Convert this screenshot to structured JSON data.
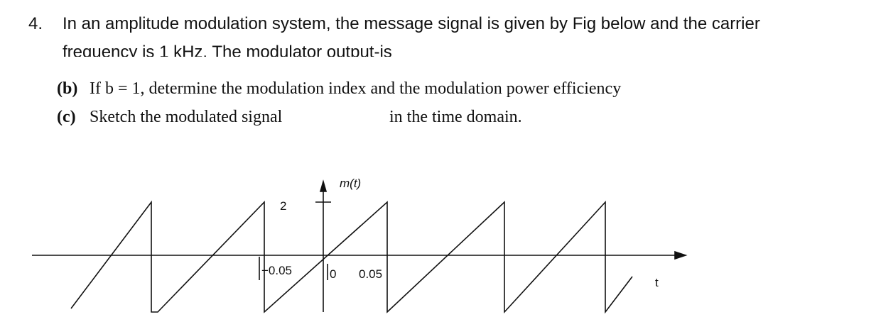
{
  "question": {
    "number": "4.",
    "text_lines": [
      "In an amplitude modulation system, the message signal is given by Fig below and the carrier",
      "frequency is 1 kHz. The modulator output-is"
    ]
  },
  "parts": [
    {
      "label": "(b)",
      "text": "If b = 1, determine the modulation index and the modulation power efficiency"
    },
    {
      "label": "(c)",
      "text": "Sketch the modulated signal",
      "text_end": "in the time domain."
    }
  ],
  "figure": {
    "y_label": "m(t)",
    "amplitude_label": "2",
    "tick_labels": [
      "−0.05",
      "0",
      "0.05"
    ],
    "x_label": "t"
  }
}
